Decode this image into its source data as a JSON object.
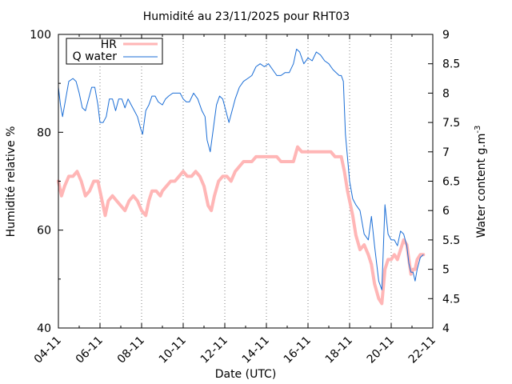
{
  "chart_data": {
    "type": "line",
    "title": "Humidité au 23/11/2025 pour RHT03",
    "xlabel": "Date (UTC)",
    "ylabel_left": "Humidité relative %",
    "ylabel_right_base": "Water content g.m",
    "ylabel_right_sup": "-3",
    "x_ticks": [
      "04-11",
      "06-11",
      "08-11",
      "10-11",
      "12-11",
      "14-11",
      "16-11",
      "18-11",
      "20-11",
      "22-11"
    ],
    "x_range_days": [
      4,
      22
    ],
    "x_data_end_day": 21.55,
    "ylim_left": [
      40,
      100
    ],
    "y_ticks_left": [
      40,
      60,
      80,
      100
    ],
    "ylim_right": [
      4,
      9
    ],
    "y_ticks_right": [
      4,
      4.5,
      5,
      5.5,
      6,
      6.5,
      7,
      7.5,
      8,
      8.5,
      9
    ],
    "grid": "vertical dotted lines at x ticks",
    "legend_position": "top-left",
    "series": [
      {
        "name": "HR",
        "axis": "left",
        "color": "#ffb6b6",
        "points": [
          [
            4.0,
            70
          ],
          [
            4.15,
            67
          ],
          [
            4.3,
            69
          ],
          [
            4.5,
            71
          ],
          [
            4.7,
            71
          ],
          [
            4.9,
            72
          ],
          [
            5.1,
            70
          ],
          [
            5.3,
            67
          ],
          [
            5.5,
            68
          ],
          [
            5.7,
            70
          ],
          [
            5.9,
            70
          ],
          [
            6.1,
            66
          ],
          [
            6.25,
            63
          ],
          [
            6.4,
            66
          ],
          [
            6.6,
            67
          ],
          [
            6.8,
            66
          ],
          [
            7.0,
            65
          ],
          [
            7.2,
            64
          ],
          [
            7.4,
            66
          ],
          [
            7.6,
            67
          ],
          [
            7.8,
            66
          ],
          [
            8.0,
            64
          ],
          [
            8.2,
            63
          ],
          [
            8.35,
            66
          ],
          [
            8.5,
            68
          ],
          [
            8.7,
            68
          ],
          [
            8.9,
            67
          ],
          [
            9.0,
            68
          ],
          [
            9.2,
            69
          ],
          [
            9.4,
            70
          ],
          [
            9.6,
            70
          ],
          [
            9.8,
            71
          ],
          [
            10.0,
            72
          ],
          [
            10.2,
            71
          ],
          [
            10.4,
            71
          ],
          [
            10.6,
            72
          ],
          [
            10.8,
            71
          ],
          [
            11.0,
            69
          ],
          [
            11.2,
            65
          ],
          [
            11.35,
            64
          ],
          [
            11.5,
            67
          ],
          [
            11.7,
            70
          ],
          [
            11.9,
            71
          ],
          [
            12.1,
            71
          ],
          [
            12.3,
            70
          ],
          [
            12.5,
            72
          ],
          [
            12.7,
            73
          ],
          [
            12.9,
            74
          ],
          [
            13.1,
            74
          ],
          [
            13.3,
            74
          ],
          [
            13.5,
            75
          ],
          [
            13.7,
            75
          ],
          [
            13.9,
            75
          ],
          [
            14.1,
            75
          ],
          [
            14.3,
            75
          ],
          [
            14.5,
            75
          ],
          [
            14.7,
            74
          ],
          [
            14.9,
            74
          ],
          [
            15.1,
            74
          ],
          [
            15.3,
            74
          ],
          [
            15.5,
            77
          ],
          [
            15.7,
            76
          ],
          [
            15.9,
            76
          ],
          [
            16.1,
            76
          ],
          [
            16.3,
            76
          ],
          [
            16.5,
            76
          ],
          [
            16.7,
            76
          ],
          [
            16.9,
            76
          ],
          [
            17.1,
            76
          ],
          [
            17.3,
            75
          ],
          [
            17.5,
            75
          ],
          [
            17.6,
            75
          ],
          [
            17.75,
            72
          ],
          [
            17.9,
            68
          ],
          [
            18.0,
            66
          ],
          [
            18.15,
            63
          ],
          [
            18.3,
            59
          ],
          [
            18.5,
            56
          ],
          [
            18.7,
            57
          ],
          [
            18.9,
            55
          ],
          [
            19.05,
            53
          ],
          [
            19.2,
            49
          ],
          [
            19.4,
            46
          ],
          [
            19.55,
            45
          ],
          [
            19.7,
            52
          ],
          [
            19.85,
            54
          ],
          [
            20.0,
            54
          ],
          [
            20.15,
            55
          ],
          [
            20.3,
            54
          ],
          [
            20.45,
            56
          ],
          [
            20.6,
            58
          ],
          [
            20.75,
            57
          ],
          [
            20.85,
            54
          ],
          [
            20.95,
            51
          ],
          [
            21.05,
            52
          ],
          [
            21.15,
            52
          ],
          [
            21.25,
            54
          ],
          [
            21.4,
            55
          ],
          [
            21.55,
            55
          ]
        ]
      },
      {
        "name": "Q water",
        "axis": "right",
        "color": "#1b6ed6",
        "points": [
          [
            4.0,
            8.1
          ],
          [
            4.1,
            7.8
          ],
          [
            4.2,
            7.6
          ],
          [
            4.35,
            7.9
          ],
          [
            4.5,
            8.2
          ],
          [
            4.7,
            8.25
          ],
          [
            4.85,
            8.2
          ],
          [
            5.0,
            8.0
          ],
          [
            5.15,
            7.75
          ],
          [
            5.3,
            7.7
          ],
          [
            5.45,
            7.9
          ],
          [
            5.6,
            8.1
          ],
          [
            5.75,
            8.1
          ],
          [
            5.9,
            7.8
          ],
          [
            6.0,
            7.5
          ],
          [
            6.15,
            7.5
          ],
          [
            6.3,
            7.6
          ],
          [
            6.45,
            7.9
          ],
          [
            6.6,
            7.9
          ],
          [
            6.75,
            7.7
          ],
          [
            6.9,
            7.9
          ],
          [
            7.05,
            7.9
          ],
          [
            7.2,
            7.75
          ],
          [
            7.35,
            7.9
          ],
          [
            7.5,
            7.8
          ],
          [
            7.65,
            7.7
          ],
          [
            7.8,
            7.6
          ],
          [
            7.95,
            7.4
          ],
          [
            8.05,
            7.3
          ],
          [
            8.2,
            7.7
          ],
          [
            8.35,
            7.8
          ],
          [
            8.5,
            7.95
          ],
          [
            8.65,
            7.95
          ],
          [
            8.8,
            7.85
          ],
          [
            9.0,
            7.8
          ],
          [
            9.15,
            7.9
          ],
          [
            9.3,
            7.95
          ],
          [
            9.5,
            8.0
          ],
          [
            9.7,
            8.0
          ],
          [
            9.85,
            8.0
          ],
          [
            10.0,
            7.9
          ],
          [
            10.15,
            7.85
          ],
          [
            10.3,
            7.85
          ],
          [
            10.5,
            8.0
          ],
          [
            10.7,
            7.9
          ],
          [
            10.9,
            7.7
          ],
          [
            11.05,
            7.6
          ],
          [
            11.15,
            7.2
          ],
          [
            11.3,
            7.0
          ],
          [
            11.45,
            7.4
          ],
          [
            11.6,
            7.8
          ],
          [
            11.75,
            7.95
          ],
          [
            11.9,
            7.9
          ],
          [
            12.05,
            7.7
          ],
          [
            12.2,
            7.5
          ],
          [
            12.35,
            7.7
          ],
          [
            12.5,
            7.9
          ],
          [
            12.7,
            8.1
          ],
          [
            12.9,
            8.2
          ],
          [
            13.1,
            8.25
          ],
          [
            13.3,
            8.3
          ],
          [
            13.5,
            8.45
          ],
          [
            13.7,
            8.5
          ],
          [
            13.9,
            8.45
          ],
          [
            14.1,
            8.5
          ],
          [
            14.3,
            8.4
          ],
          [
            14.5,
            8.3
          ],
          [
            14.7,
            8.3
          ],
          [
            14.9,
            8.35
          ],
          [
            15.1,
            8.35
          ],
          [
            15.3,
            8.5
          ],
          [
            15.45,
            8.75
          ],
          [
            15.6,
            8.7
          ],
          [
            15.8,
            8.5
          ],
          [
            16.0,
            8.6
          ],
          [
            16.2,
            8.55
          ],
          [
            16.4,
            8.7
          ],
          [
            16.6,
            8.65
          ],
          [
            16.8,
            8.55
          ],
          [
            17.0,
            8.5
          ],
          [
            17.2,
            8.4
          ],
          [
            17.35,
            8.35
          ],
          [
            17.5,
            8.3
          ],
          [
            17.6,
            8.3
          ],
          [
            17.7,
            8.2
          ],
          [
            17.8,
            7.3
          ],
          [
            17.9,
            6.9
          ],
          [
            18.0,
            6.5
          ],
          [
            18.15,
            6.2
          ],
          [
            18.3,
            6.1
          ],
          [
            18.5,
            6.0
          ],
          [
            18.7,
            5.6
          ],
          [
            18.9,
            5.5
          ],
          [
            19.05,
            5.9
          ],
          [
            19.2,
            5.4
          ],
          [
            19.4,
            4.8
          ],
          [
            19.55,
            4.65
          ],
          [
            19.7,
            6.1
          ],
          [
            19.85,
            5.6
          ],
          [
            20.0,
            5.5
          ],
          [
            20.15,
            5.5
          ],
          [
            20.3,
            5.4
          ],
          [
            20.45,
            5.65
          ],
          [
            20.6,
            5.6
          ],
          [
            20.75,
            5.4
          ],
          [
            20.85,
            5.1
          ],
          [
            20.95,
            4.95
          ],
          [
            21.05,
            4.95
          ],
          [
            21.15,
            4.8
          ],
          [
            21.25,
            5.0
          ],
          [
            21.4,
            5.2
          ],
          [
            21.55,
            5.25
          ]
        ]
      }
    ]
  }
}
